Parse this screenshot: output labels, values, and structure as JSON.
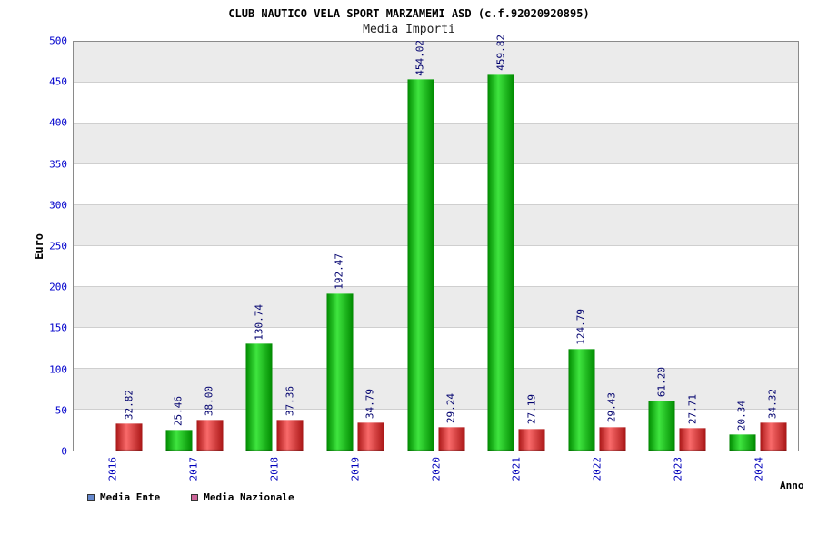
{
  "chart_data": {
    "type": "bar",
    "title": "CLUB NAUTICO VELA SPORT MARZAMEMI ASD (c.f.92020920895)",
    "subtitle": "Media Importi",
    "xlabel": "Anno",
    "ylabel": "Euro",
    "ylim": [
      0,
      500
    ],
    "ytick_step": 50,
    "grid": true,
    "legend_position": "bottom-left",
    "categories": [
      "2016",
      "2017",
      "2018",
      "2019",
      "2020",
      "2021",
      "2022",
      "2023",
      "2024"
    ],
    "series": [
      {
        "name": "Media Ente",
        "bar_dark": "#008a00",
        "bar_light": "#3fe53f",
        "values": [
          null,
          25.46,
          130.74,
          192.47,
          454.02,
          459.82,
          124.79,
          61.2,
          20.34
        ],
        "labels": [
          "",
          "25.46",
          "130.74",
          "192.47",
          "454.02",
          "459.82",
          "124.79",
          "61.20",
          "20.34"
        ]
      },
      {
        "name": "Media Nazionale",
        "bar_dark": "#aa1616",
        "bar_light": "#f96a6a",
        "values": [
          32.82,
          38.0,
          37.36,
          34.79,
          29.24,
          27.19,
          29.43,
          27.71,
          34.32
        ],
        "labels": [
          "32.82",
          "38.00",
          "37.36",
          "34.79",
          "29.24",
          "27.19",
          "29.43",
          "27.71",
          "34.32"
        ]
      }
    ]
  },
  "legend": {
    "items": [
      {
        "label": "Media Ente",
        "color": "#6688cc"
      },
      {
        "label": "Media Nazionale",
        "color": "#cc6699"
      }
    ]
  }
}
